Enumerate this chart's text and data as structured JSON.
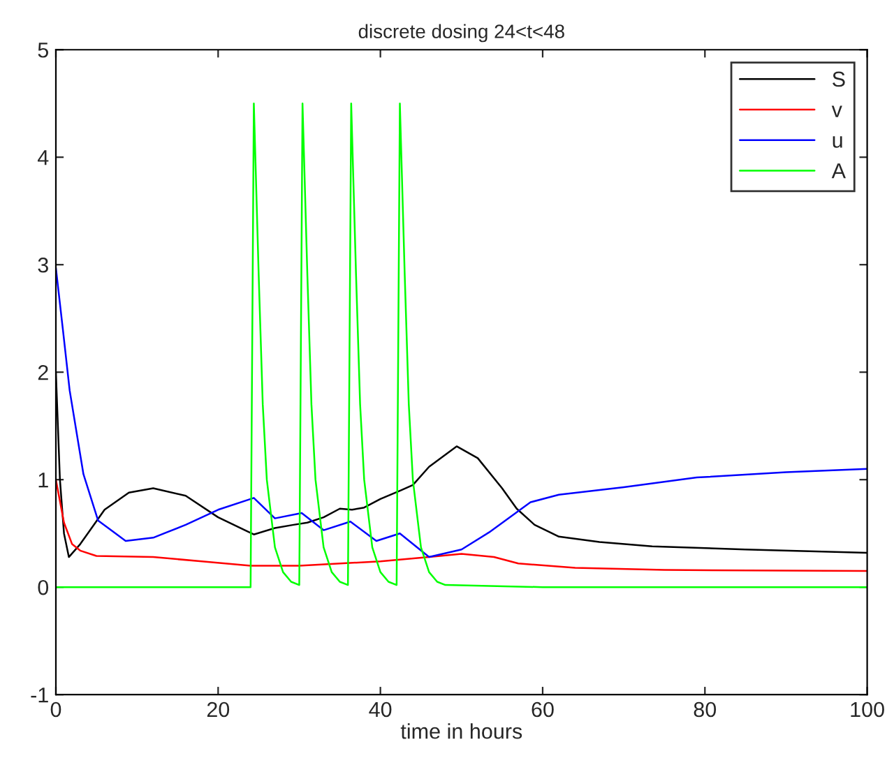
{
  "chart_data": {
    "type": "line",
    "title": "discrete dosing 24<t<48",
    "xlabel": "time in hours",
    "xlim": [
      0,
      100
    ],
    "xticks": [
      0,
      20,
      40,
      60,
      80,
      100
    ],
    "ylim": [
      -1,
      5
    ],
    "yticks": [
      -1,
      0,
      1,
      2,
      3,
      4,
      5
    ],
    "grid": false,
    "legend": "top right",
    "marker": "none",
    "line_style": "solid",
    "series": [
      {
        "name": "S",
        "color": "#000000",
        "x": [
          0,
          0.5,
          1,
          1.6,
          3,
          6,
          9,
          12,
          16,
          20,
          24.4,
          27,
          29.3,
          31,
          33,
          35,
          36.5,
          38,
          40,
          42.5,
          44,
          46,
          49.4,
          52,
          55,
          56.8,
          59,
          62,
          67,
          73.5,
          85,
          100
        ],
        "values": [
          2.0,
          1.0,
          0.5,
          0.28,
          0.4,
          0.72,
          0.88,
          0.92,
          0.85,
          0.65,
          0.49,
          0.55,
          0.58,
          0.6,
          0.65,
          0.73,
          0.72,
          0.74,
          0.82,
          0.9,
          0.95,
          1.12,
          1.31,
          1.2,
          0.92,
          0.73,
          0.58,
          0.47,
          0.42,
          0.38,
          0.35,
          0.32
        ]
      },
      {
        "name": "v",
        "color": "#ff0000",
        "x": [
          0,
          0.5,
          1,
          2,
          3,
          5,
          12,
          18,
          24,
          30,
          40,
          46,
          50,
          54,
          57,
          64,
          75,
          100
        ],
        "values": [
          1.0,
          0.8,
          0.6,
          0.4,
          0.34,
          0.29,
          0.28,
          0.24,
          0.2,
          0.2,
          0.24,
          0.28,
          0.31,
          0.28,
          0.22,
          0.18,
          0.16,
          0.15
        ]
      },
      {
        "name": "u",
        "color": "#0000ff",
        "x": [
          0,
          0.86,
          1.7,
          3.4,
          5.2,
          8.6,
          12,
          16,
          20,
          24.4,
          27,
          30.3,
          33,
          36.3,
          39.5,
          42.4,
          46,
          50,
          53.4,
          58.5,
          62,
          70,
          79,
          90,
          100
        ],
        "values": [
          2.97,
          2.4,
          1.83,
          1.05,
          0.62,
          0.43,
          0.46,
          0.58,
          0.72,
          0.83,
          0.64,
          0.69,
          0.53,
          0.61,
          0.43,
          0.5,
          0.28,
          0.35,
          0.51,
          0.79,
          0.86,
          0.93,
          1.02,
          1.07,
          1.1
        ]
      },
      {
        "name": "A",
        "color": "#00ff00",
        "x": [
          0,
          24,
          24.4,
          25,
          25.5,
          26,
          27,
          28,
          29,
          30,
          30.4,
          31,
          31.5,
          32,
          33,
          34,
          35,
          36,
          36.4,
          37,
          37.5,
          38,
          39,
          40,
          41,
          42,
          42.4,
          43,
          43.5,
          44,
          45,
          46,
          47,
          48,
          60,
          100
        ],
        "values": [
          0,
          0,
          4.5,
          2.9,
          1.7,
          1.0,
          0.37,
          0.14,
          0.05,
          0.02,
          4.5,
          2.9,
          1.7,
          1.0,
          0.37,
          0.14,
          0.05,
          0.02,
          4.5,
          2.9,
          1.7,
          1.0,
          0.37,
          0.14,
          0.05,
          0.02,
          4.5,
          2.9,
          1.7,
          1.0,
          0.37,
          0.14,
          0.05,
          0.02,
          0,
          0
        ]
      }
    ]
  }
}
